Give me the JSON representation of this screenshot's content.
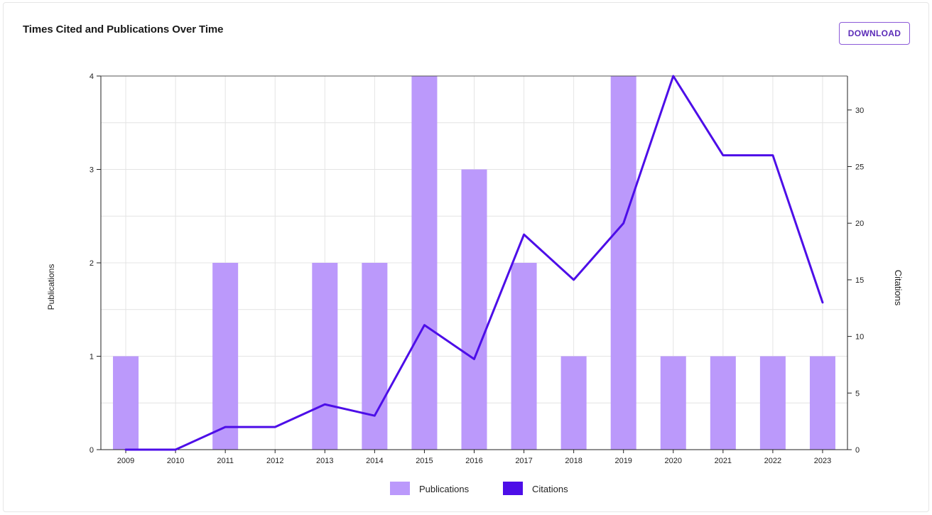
{
  "header": {
    "title": "Times Cited and Publications Over Time",
    "download_label": "DOWNLOAD"
  },
  "colors": {
    "bar": "#bb99fb",
    "line": "#4d0ee8",
    "grid": "#e4e4e4",
    "axis": "#222222"
  },
  "chart_data": {
    "type": "bar+line",
    "categories": [
      "2009",
      "2010",
      "2011",
      "2012",
      "2013",
      "2014",
      "2015",
      "2016",
      "2017",
      "2018",
      "2019",
      "2020",
      "2021",
      "2022",
      "2023"
    ],
    "series": [
      {
        "name": "Publications",
        "type": "bar",
        "axis": "left",
        "values": [
          1,
          0,
          2,
          0,
          2,
          2,
          4,
          3,
          2,
          1,
          4,
          1,
          1,
          1,
          1
        ]
      },
      {
        "name": "Citations",
        "type": "line",
        "axis": "right",
        "values": [
          0,
          0,
          2,
          2,
          4,
          3,
          11,
          8,
          19,
          15,
          20,
          33,
          26,
          26,
          13
        ]
      }
    ],
    "ylabel_left": "Publications",
    "ylabel_right": "Citations",
    "ylim_left": [
      0,
      4
    ],
    "ylim_right": [
      0,
      33
    ],
    "yticks_left": [
      0,
      1,
      2,
      3,
      4
    ],
    "yticks_right": [
      0,
      5,
      10,
      15,
      20,
      25,
      30
    ],
    "grid": true,
    "legend": {
      "position": "bottom-center",
      "items": [
        "Publications",
        "Citations"
      ]
    }
  }
}
